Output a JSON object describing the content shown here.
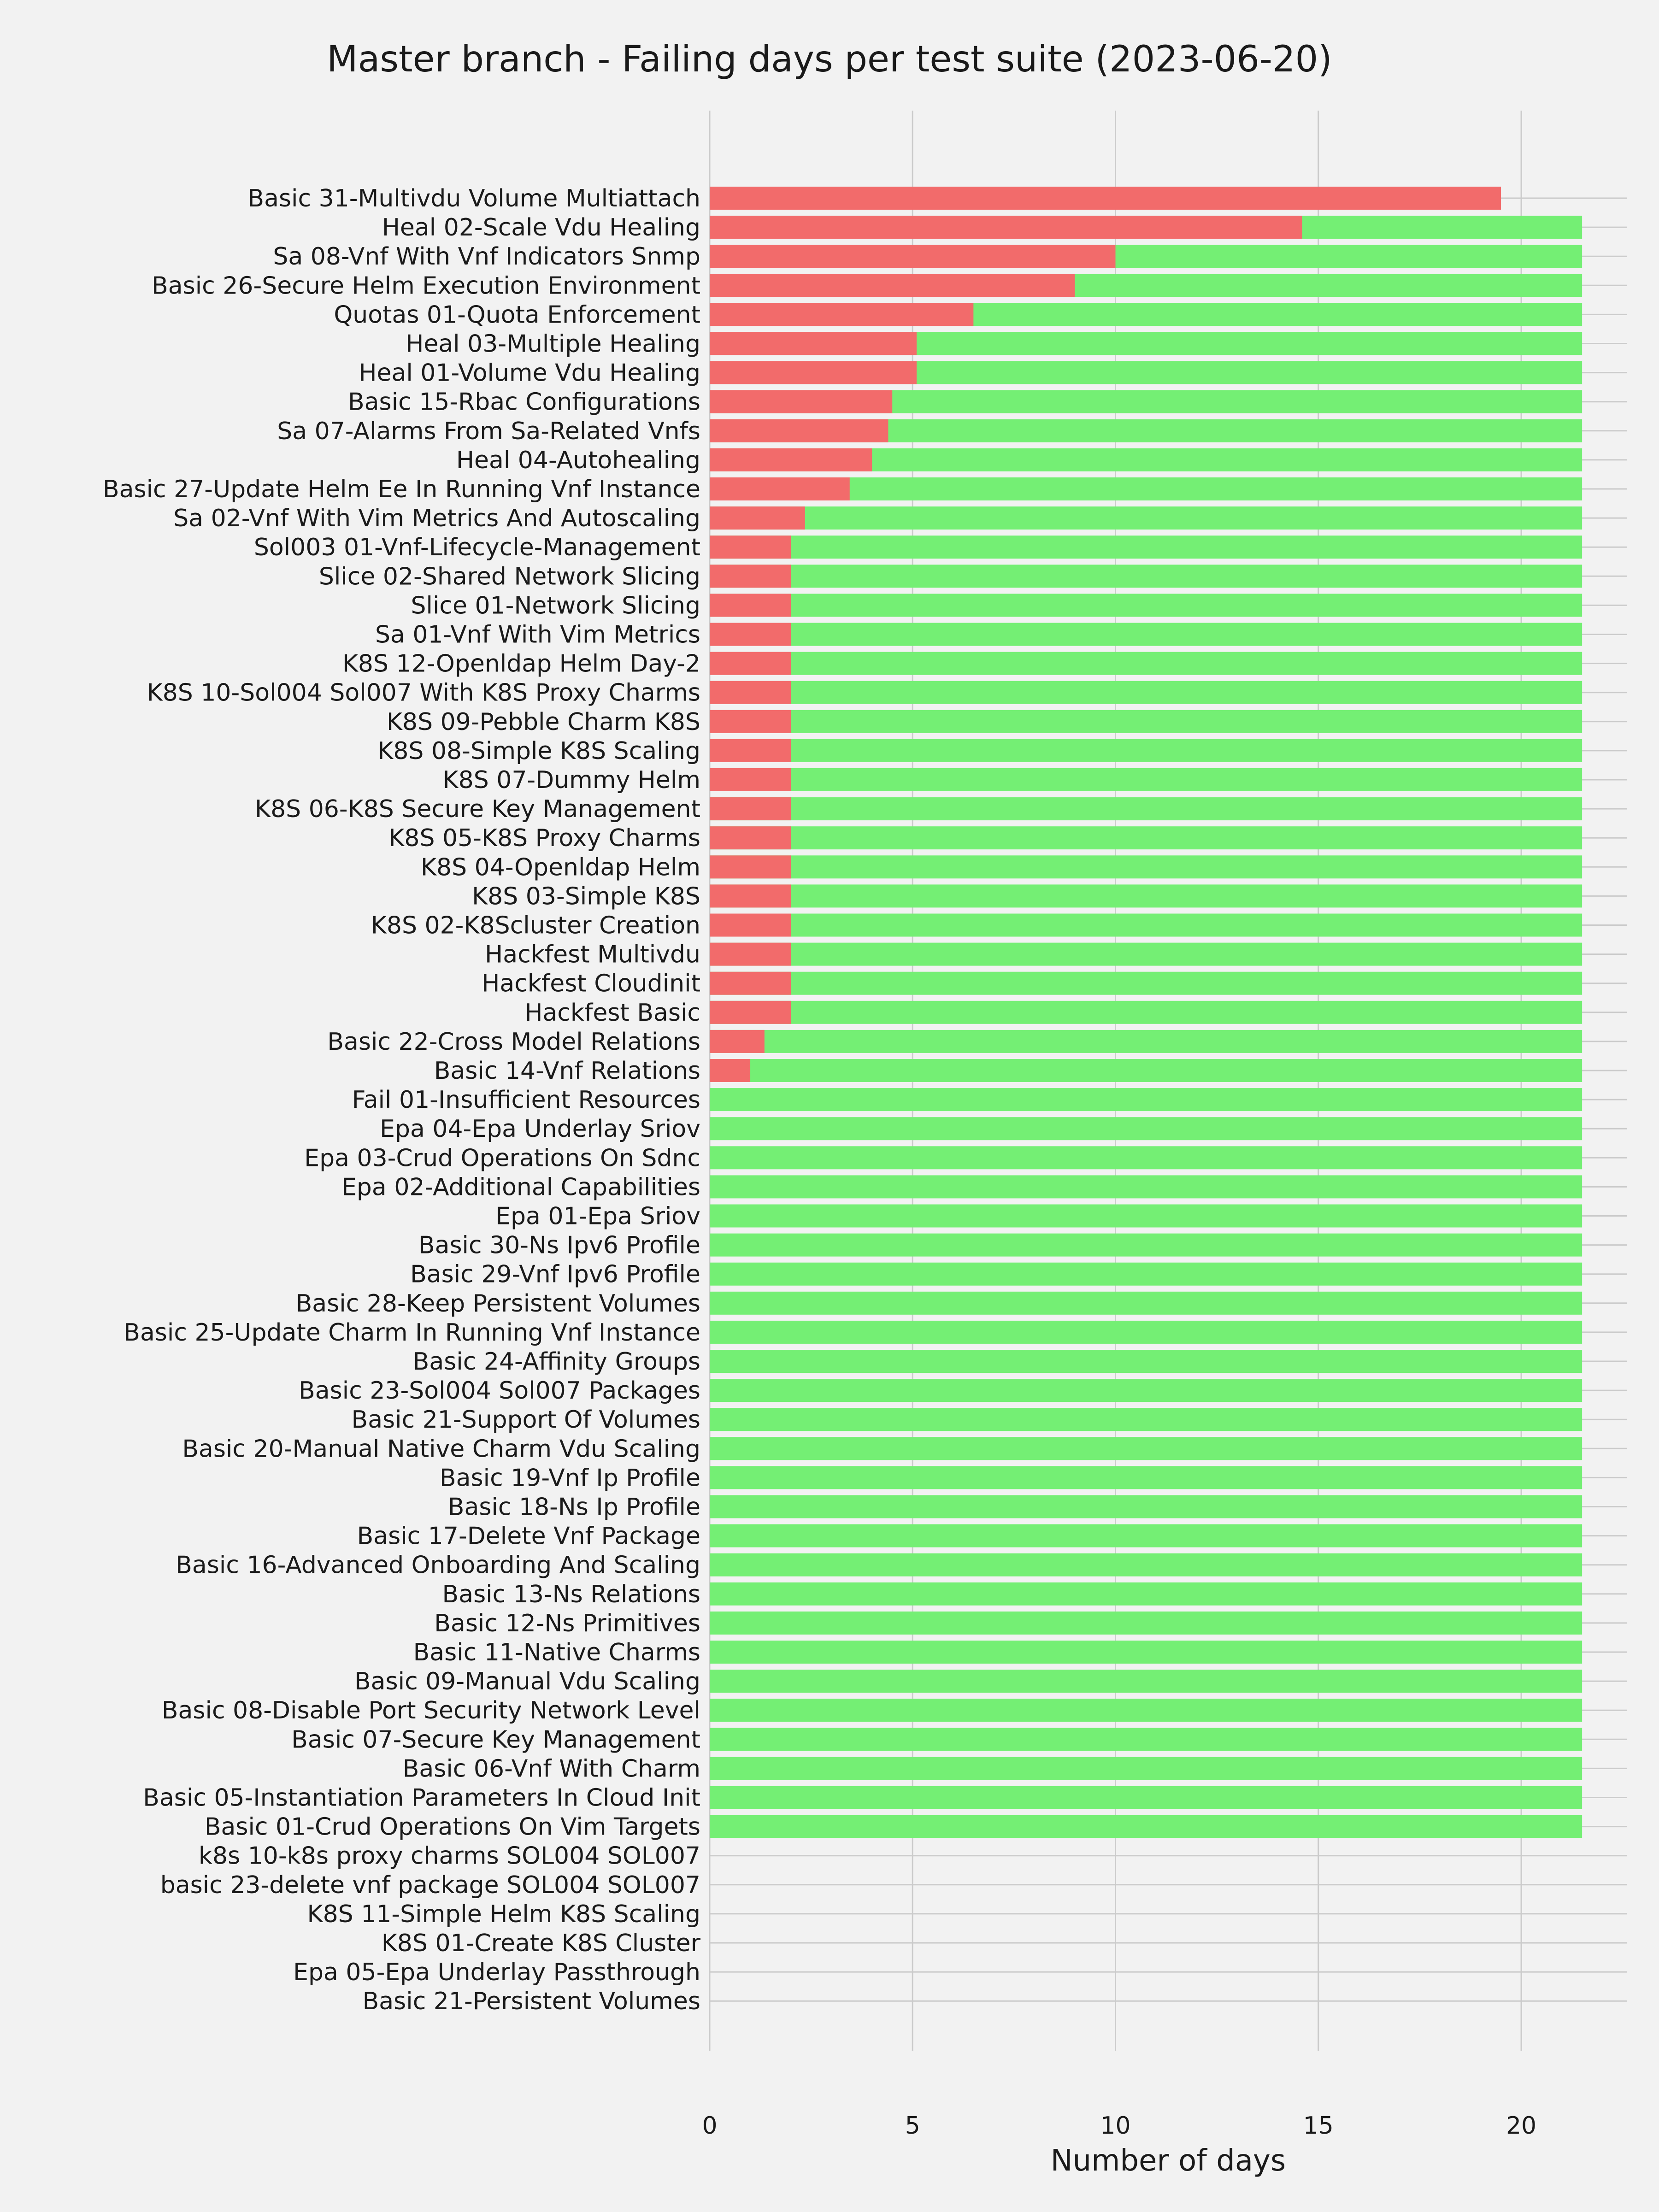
{
  "chart_data": {
    "type": "bar",
    "orientation": "horizontal",
    "stacked": false,
    "title": "Master branch - Failing days per test suite (2023-06-20)",
    "xlabel": "Number of days",
    "ylabel": "",
    "xlim": [
      0,
      22.6
    ],
    "xticks": [
      0,
      5,
      10,
      15,
      20
    ],
    "grid": true,
    "colors": {
      "failing": "#f26b6b",
      "passing": "#74ef74",
      "background": "#f2f2f2",
      "grid": "#cbcbcb"
    },
    "categories": [
      "Basic 31-Multivdu Volume Multiattach",
      "Heal 02-Scale Vdu Healing",
      "Sa 08-Vnf With Vnf Indicators Snmp",
      "Basic 26-Secure Helm Execution Environment",
      "Quotas 01-Quota Enforcement",
      "Heal 03-Multiple Healing",
      "Heal 01-Volume Vdu Healing",
      "Basic 15-Rbac Configurations",
      "Sa 07-Alarms From Sa-Related Vnfs",
      "Heal 04-Autohealing",
      "Basic 27-Update Helm Ee In Running Vnf Instance",
      "Sa 02-Vnf With Vim Metrics And Autoscaling",
      "Sol003 01-Vnf-Lifecycle-Management",
      "Slice 02-Shared Network Slicing",
      "Slice 01-Network Slicing",
      "Sa 01-Vnf With Vim Metrics",
      "K8S 12-Openldap Helm Day-2",
      "K8S 10-Sol004 Sol007 With K8S Proxy Charms",
      "K8S 09-Pebble Charm K8S",
      "K8S 08-Simple K8S Scaling",
      "K8S 07-Dummy Helm",
      "K8S 06-K8S Secure Key Management",
      "K8S 05-K8S Proxy Charms",
      "K8S 04-Openldap Helm",
      "K8S 03-Simple K8S",
      "K8S 02-K8Scluster Creation",
      "Hackfest Multivdu",
      "Hackfest Cloudinit",
      "Hackfest Basic",
      "Basic 22-Cross Model Relations",
      "Basic 14-Vnf Relations",
      "Fail 01-Insufficient Resources",
      "Epa 04-Epa Underlay Sriov",
      "Epa 03-Crud Operations On Sdnc",
      "Epa 02-Additional Capabilities",
      "Epa 01-Epa Sriov",
      "Basic 30-Ns Ipv6 Profile",
      "Basic 29-Vnf Ipv6 Profile",
      "Basic 28-Keep Persistent Volumes",
      "Basic 25-Update Charm In Running Vnf Instance",
      "Basic 24-Affinity Groups",
      "Basic 23-Sol004 Sol007 Packages",
      "Basic 21-Support Of Volumes",
      "Basic 20-Manual Native Charm Vdu Scaling",
      "Basic 19-Vnf Ip Profile",
      "Basic 18-Ns Ip Profile",
      "Basic 17-Delete Vnf Package",
      "Basic 16-Advanced Onboarding And Scaling",
      "Basic 13-Ns Relations",
      "Basic 12-Ns Primitives",
      "Basic 11-Native Charms",
      "Basic 09-Manual Vdu Scaling",
      "Basic 08-Disable Port Security Network Level",
      "Basic 07-Secure Key Management",
      "Basic 06-Vnf With Charm",
      "Basic 05-Instantiation Parameters In Cloud Init",
      "Basic 01-Crud Operations On Vim Targets",
      "k8s 10-k8s proxy charms SOL004 SOL007",
      "basic 23-delete vnf package SOL004 SOL007",
      "K8S 11-Simple Helm K8S Scaling",
      "K8S 01-Create K8S Cluster",
      "Epa 05-Epa Underlay Passthrough",
      "Basic 21-Persistent Volumes"
    ],
    "series": [
      {
        "key": "failing",
        "values": [
          19.5,
          14.6,
          10,
          9,
          6.5,
          5.1,
          5.1,
          4.5,
          4.4,
          4,
          3.45,
          2.35,
          2,
          2,
          2,
          2,
          2,
          2,
          2,
          2,
          2,
          2,
          2,
          2,
          2,
          2,
          2,
          2,
          2,
          1.35,
          1,
          0,
          0,
          0,
          0,
          0,
          0,
          0,
          0,
          0,
          0,
          0,
          0,
          0,
          0,
          0,
          0,
          0,
          0,
          0,
          0,
          0,
          0,
          0,
          0,
          0,
          0,
          0,
          0,
          0,
          0,
          0,
          0
        ]
      },
      {
        "key": "passing",
        "values": [
          0,
          21.5,
          21.5,
          21.5,
          21.5,
          21.5,
          21.5,
          21.5,
          21.5,
          21.5,
          21.5,
          21.5,
          21.5,
          21.5,
          21.5,
          21.5,
          21.5,
          21.5,
          21.5,
          21.5,
          21.5,
          21.5,
          21.5,
          21.5,
          21.5,
          21.5,
          21.5,
          21.5,
          21.5,
          21.5,
          21.5,
          21.5,
          21.5,
          21.5,
          21.5,
          21.5,
          21.5,
          21.5,
          21.5,
          21.5,
          21.5,
          21.5,
          21.5,
          21.5,
          21.5,
          21.5,
          21.5,
          21.5,
          21.5,
          21.5,
          21.5,
          21.5,
          21.5,
          21.5,
          21.5,
          21.5,
          21.5,
          0,
          0,
          0,
          0,
          0,
          0
        ]
      }
    ]
  }
}
